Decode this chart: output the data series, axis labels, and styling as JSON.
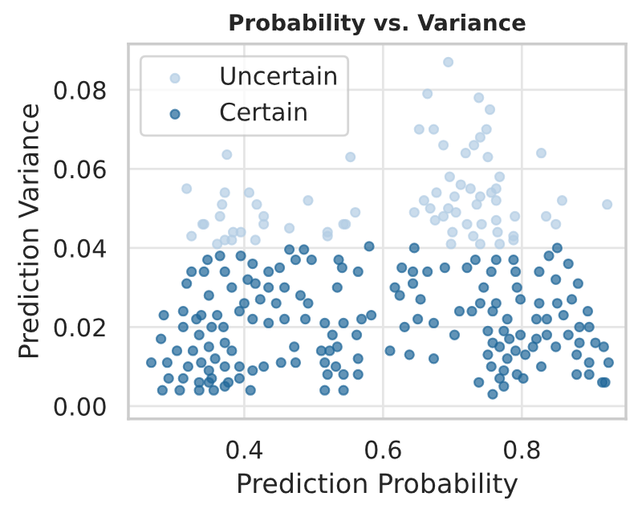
{
  "chart_data": {
    "type": "scatter",
    "title": "Probability vs. Variance",
    "xlabel": "Prediction Probability",
    "ylabel": "Prediction Variance",
    "xlim": [
      0.233,
      0.95
    ],
    "ylim": [
      -0.0032,
      0.0916
    ],
    "xticks": [
      0.4,
      0.6,
      0.8
    ],
    "yticks": [
      {
        "value": 0,
        "label": "0.00"
      },
      {
        "value": 0.02,
        "label": "0.02"
      },
      {
        "value": 0.04,
        "label": "0.04"
      },
      {
        "value": 0.06,
        "label": "0.06"
      },
      {
        "value": 0.08,
        "label": "0.08"
      }
    ],
    "grid": true,
    "legend": "top left",
    "marker": "circle",
    "series": [
      {
        "name": "Uncertain",
        "color": "#b3cde4",
        "x": [
          0.375,
          0.553,
          0.317,
          0.372,
          0.407,
          0.492,
          0.56,
          0.546,
          0.368,
          0.418,
          0.365,
          0.34,
          0.428,
          0.465,
          0.52,
          0.324,
          0.342,
          0.395,
          0.428,
          0.543,
          0.52,
          0.361,
          0.382,
          0.416,
          0.384,
          0.372,
          0.694,
          0.664,
          0.738,
          0.754,
          0.652,
          0.673,
          0.749,
          0.74,
          0.687,
          0.731,
          0.719,
          0.751,
          0.828,
          0.696,
          0.712,
          0.768,
          0.763,
          0.677,
          0.659,
          0.703,
          0.726,
          0.74,
          0.756,
          0.645,
          0.668,
          0.694,
          0.705,
          0.735,
          0.763,
          0.858,
          0.675,
          0.687,
          0.721,
          0.742,
          0.763,
          0.79,
          0.835,
          0.849,
          0.788,
          0.7,
          0.73,
          0.765,
          0.788,
          0.74,
          0.768,
          0.698,
          0.923
        ],
        "values": [
          0.0636,
          0.063,
          0.055,
          0.054,
          0.054,
          0.052,
          0.049,
          0.046,
          0.051,
          0.051,
          0.048,
          0.046,
          0.048,
          0.045,
          0.044,
          0.043,
          0.046,
          0.044,
          0.046,
          0.046,
          0.043,
          0.041,
          0.042,
          0.042,
          0.044,
          0.042,
          0.087,
          0.079,
          0.078,
          0.075,
          0.07,
          0.07,
          0.07,
          0.068,
          0.066,
          0.066,
          0.064,
          0.063,
          0.064,
          0.058,
          0.056,
          0.058,
          0.055,
          0.054,
          0.052,
          0.053,
          0.055,
          0.053,
          0.054,
          0.049,
          0.05,
          0.05,
          0.049,
          0.051,
          0.052,
          0.052,
          0.047,
          0.048,
          0.046,
          0.046,
          0.047,
          0.048,
          0.048,
          0.046,
          0.043,
          0.044,
          0.043,
          0.044,
          0.042,
          0.041,
          0.041,
          0.041,
          0.051
        ]
      },
      {
        "name": "Certain",
        "color": "#1f6699",
        "x": [
          0.58,
          0.465,
          0.486,
          0.497,
          0.474,
          0.536,
          0.541,
          0.564,
          0.534,
          0.395,
          0.412,
          0.365,
          0.347,
          0.324,
          0.342,
          0.372,
          0.405,
          0.435,
          0.451,
          0.317,
          0.349,
          0.382,
          0.416,
          0.435,
          0.458,
          0.481,
          0.492,
          0.488,
          0.458,
          0.435,
          0.412,
          0.393,
          0.4,
          0.423,
          0.446,
          0.284,
          0.312,
          0.338,
          0.361,
          0.312,
          0.335,
          0.353,
          0.37,
          0.331,
          0.28,
          0.303,
          0.326,
          0.349,
          0.372,
          0.382,
          0.358,
          0.338,
          0.266,
          0.289,
          0.319,
          0.349,
          0.372,
          0.393,
          0.412,
          0.428,
          0.453,
          0.474,
          0.291,
          0.312,
          0.335,
          0.353,
          0.377,
          0.393,
          0.282,
          0.307,
          0.335,
          0.356,
          0.372,
          0.409,
          0.349,
          0.516,
          0.527,
          0.543,
          0.523,
          0.534,
          0.516,
          0.532,
          0.52,
          0.543,
          0.516,
          0.543,
          0.564,
          0.564,
          0.472,
          0.562,
          0.569,
          0.583,
          0.511,
          0.645,
          0.627,
          0.643,
          0.664,
          0.689,
          0.643,
          0.617,
          0.624,
          0.654,
          0.721,
          0.733,
          0.763,
          0.788,
          0.756,
          0.791,
          0.825,
          0.839,
          0.851,
          0.867,
          0.849,
          0.881,
          0.745,
          0.793,
          0.798,
          0.825,
          0.851,
          0.872,
          0.74,
          0.763,
          0.71,
          0.728,
          0.65,
          0.673,
          0.631,
          0.703,
          0.758,
          0.779,
          0.821,
          0.836,
          0.86,
          0.895,
          0.883,
          0.897,
          0.751,
          0.774,
          0.798,
          0.821,
          0.836,
          0.867,
          0.758,
          0.782,
          0.768,
          0.791,
          0.816,
          0.849,
          0.906,
          0.918,
          0.883,
          0.61,
          0.638,
          0.673,
          0.751,
          0.779,
          0.805,
          0.828,
          0.879,
          0.897,
          0.879,
          0.897,
          0.92,
          0.756,
          0.774,
          0.793,
          0.768,
          0.738,
          0.758,
          0.774,
          0.802,
          0.925,
          0.916
        ],
        "values": [
          0.0404,
          0.0396,
          0.0396,
          0.037,
          0.037,
          0.037,
          0.035,
          0.034,
          0.03,
          0.038,
          0.036,
          0.038,
          0.037,
          0.034,
          0.034,
          0.034,
          0.032,
          0.034,
          0.035,
          0.031,
          0.028,
          0.03,
          0.031,
          0.03,
          0.03,
          0.028,
          0.026,
          0.022,
          0.022,
          0.021,
          0.022,
          0.024,
          0.026,
          0.027,
          0.026,
          0.023,
          0.024,
          0.023,
          0.023,
          0.02,
          0.018,
          0.02,
          0.02,
          0.022,
          0.017,
          0.014,
          0.014,
          0.015,
          0.016,
          0.014,
          0.012,
          0.011,
          0.011,
          0.011,
          0.01,
          0.009,
          0.01,
          0.01,
          0.009,
          0.01,
          0.011,
          0.011,
          0.007,
          0.007,
          0.006,
          0.007,
          0.006,
          0.007,
          0.004,
          0.004,
          0.004,
          0.004,
          0.005,
          0.004,
          0.006,
          0.021,
          0.018,
          0.021,
          0.014,
          0.015,
          0.011,
          0.01,
          0.008,
          0.008,
          0.004,
          0.004,
          0.012,
          0.008,
          0.015,
          0.018,
          0.022,
          0.023,
          0.014,
          0.04,
          0.035,
          0.034,
          0.034,
          0.035,
          0.031,
          0.03,
          0.028,
          0.027,
          0.035,
          0.037,
          0.037,
          0.037,
          0.034,
          0.034,
          0.034,
          0.038,
          0.04,
          0.036,
          0.032,
          0.031,
          0.03,
          0.03,
          0.027,
          0.026,
          0.026,
          0.027,
          0.026,
          0.026,
          0.024,
          0.024,
          0.022,
          0.021,
          0.02,
          0.018,
          0.024,
          0.022,
          0.022,
          0.022,
          0.023,
          0.024,
          0.02,
          0.02,
          0.019,
          0.019,
          0.018,
          0.017,
          0.018,
          0.018,
          0.016,
          0.017,
          0.015,
          0.014,
          0.015,
          0.015,
          0.016,
          0.015,
          0.016,
          0.014,
          0.013,
          0.012,
          0.013,
          0.012,
          0.013,
          0.01,
          0.013,
          0.011,
          0.008,
          0.008,
          0.006,
          0.01,
          0.009,
          0.008,
          0.007,
          0.006,
          0.003,
          0.005,
          0.007,
          0.011,
          0.006
        ]
      }
    ]
  }
}
